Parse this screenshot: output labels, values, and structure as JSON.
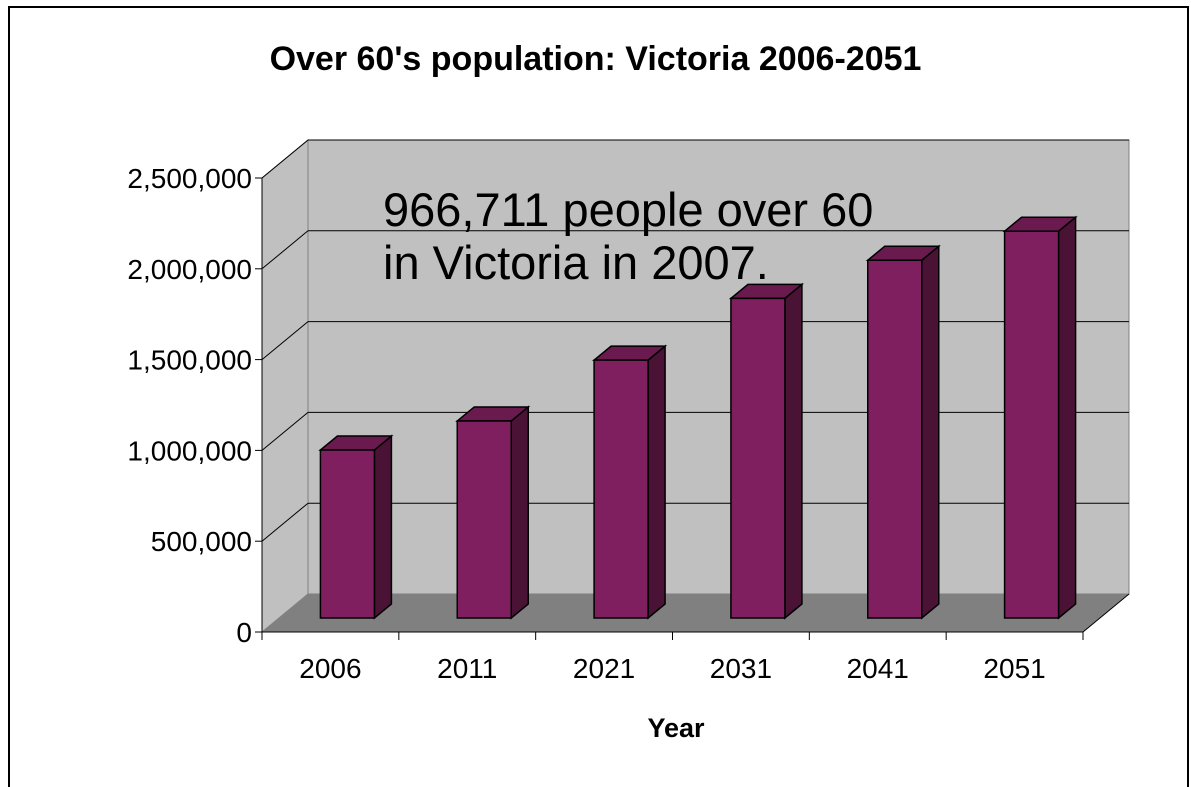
{
  "chart_data": {
    "type": "bar",
    "title": "Over 60's population: Victoria 2006-2051",
    "xlabel": "Year",
    "ylabel": "",
    "categories": [
      "2006",
      "2011",
      "2021",
      "2031",
      "2041",
      "2051"
    ],
    "values": [
      925000,
      1085000,
      1420000,
      1760000,
      1970000,
      2130000
    ],
    "ylim": [
      0,
      2500000
    ],
    "yticks": [
      0,
      500000,
      1000000,
      1500000,
      2000000,
      2500000
    ],
    "ytick_labels": [
      "0",
      "500,000",
      "1,000,000",
      "1,500,000",
      "2,000,000",
      "2,500,000"
    ],
    "annotation_lines": [
      "966,711 people over 60",
      "in Victoria in 2007."
    ],
    "grid": true,
    "legend": "none",
    "colors": {
      "bar_front": "#7f1f5f",
      "bar_side": "#4a1336",
      "bar_top": "#6b1a50",
      "back_wall": "#c0c0c0",
      "side_wall": "#c0c0c0",
      "floor": "#808080"
    }
  }
}
